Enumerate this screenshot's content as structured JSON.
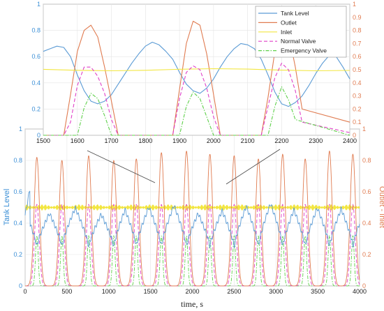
{
  "chart_data": [
    {
      "id": "full",
      "type": "line",
      "xlabel": "time, s",
      "ylabel_left": "Tank Level",
      "ylabel_right": "Outlet - Inlet",
      "xlim": [
        0,
        4000
      ],
      "ylim_left": [
        0,
        1
      ],
      "ylim_right": [
        0,
        1
      ],
      "xticks": [
        "0",
        "500",
        "1000",
        "1500",
        "2000",
        "2500",
        "3000",
        "3500",
        "4000"
      ],
      "yticks_left": [
        "0",
        "0.2",
        "0.4",
        "0.6",
        "0.8",
        "1"
      ],
      "yticks_right": [
        "0",
        "0.2",
        "0.4",
        "0.6",
        "0.8",
        "1"
      ],
      "grid": true,
      "cycle_peaks_x": [
        140,
        440,
        760,
        1060,
        1330,
        1630,
        1930,
        2210,
        2500,
        2790,
        3080,
        3350,
        3640,
        3920
      ],
      "tank_level_peaks": [
        0.65,
        0.62,
        0.68,
        0.61,
        0.66,
        0.69,
        0.71,
        0.62,
        0.65,
        0.7,
        0.73,
        0.66,
        0.68,
        0.67
      ],
      "tank_level_min": 0.25,
      "outlet_peaks": [
        0.82,
        0.8,
        0.83,
        0.8,
        0.81,
        0.85,
        0.86,
        0.84,
        0.83,
        0.81,
        0.84,
        0.81,
        0.86,
        0.84
      ],
      "inlet_level": 0.5,
      "normal_valve_peak": 0.52,
      "emergency_valve_peak": 0.32
    },
    {
      "id": "zoom",
      "type": "line",
      "xlim": [
        1500,
        2400
      ],
      "ylim_left": [
        0,
        1
      ],
      "ylim_right": [
        0,
        1
      ],
      "xticks": [
        "1500",
        "1600",
        "1700",
        "1800",
        "1900",
        "2000",
        "2100",
        "2200",
        "2300",
        "2400"
      ],
      "yticks_left": [
        "0",
        "0.2",
        "0.4",
        "0.6",
        "0.8",
        "1"
      ],
      "yticks_right": [
        "0",
        "0.1",
        "0.2",
        "0.3",
        "0.4",
        "0.5",
        "0.6",
        "0.7",
        "0.8",
        "0.9",
        "1"
      ],
      "grid": true,
      "legend_position": "top-right",
      "series": [
        {
          "name": "Tank Level",
          "color": "#5b9bd5",
          "dash": "solid",
          "x": [
            1500,
            1520,
            1540,
            1560,
            1580,
            1600,
            1620,
            1640,
            1660,
            1680,
            1700,
            1720,
            1740,
            1760,
            1780,
            1800,
            1820,
            1840,
            1860,
            1880,
            1900,
            1920,
            1940,
            1960,
            1980,
            2000,
            2020,
            2040,
            2060,
            2080,
            2100,
            2120,
            2140,
            2160,
            2180,
            2200,
            2220,
            2240,
            2260,
            2280,
            2300,
            2320,
            2340,
            2360,
            2380,
            2400
          ],
          "y": [
            0.64,
            0.66,
            0.68,
            0.67,
            0.6,
            0.46,
            0.34,
            0.26,
            0.24,
            0.26,
            0.31,
            0.39,
            0.47,
            0.55,
            0.62,
            0.68,
            0.71,
            0.69,
            0.64,
            0.58,
            0.48,
            0.39,
            0.34,
            0.32,
            0.36,
            0.43,
            0.52,
            0.6,
            0.66,
            0.7,
            0.69,
            0.66,
            0.58,
            0.46,
            0.33,
            0.24,
            0.22,
            0.25,
            0.3,
            0.38,
            0.47,
            0.55,
            0.61,
            0.6,
            0.52,
            0.43
          ]
        },
        {
          "name": "Outlet",
          "color": "#e07b50",
          "dash": "solid",
          "x": [
            1500,
            1540,
            1560,
            1580,
            1600,
            1620,
            1640,
            1660,
            1680,
            1700,
            1720,
            1880,
            1900,
            1920,
            1940,
            1960,
            1980,
            2000,
            2020,
            2140,
            2160,
            2180,
            2200,
            2220,
            2240,
            2260,
            2400
          ],
          "y": [
            0,
            0,
            0,
            0.31,
            0.64,
            0.8,
            0.84,
            0.75,
            0.52,
            0.26,
            0,
            0,
            0.35,
            0.7,
            0.87,
            0.84,
            0.62,
            0.31,
            0,
            0,
            0.29,
            0.64,
            0.82,
            0.78,
            0.52,
            0.2,
            0.1
          ]
        },
        {
          "name": "Inlet",
          "color": "#f2e640",
          "dash": "solid",
          "x": [
            1500,
            1600,
            1700,
            1800,
            1900,
            2000,
            2100,
            2200,
            2300,
            2400
          ],
          "y": [
            0.5,
            0.5,
            0.5,
            0.5,
            0.5,
            0.5,
            0.5,
            0.5,
            0.5,
            0.5
          ]
        },
        {
          "name": "Normal Valve",
          "color": "#e040c8",
          "dash": "dashed",
          "x": [
            1500,
            1560,
            1580,
            1600,
            1620,
            1640,
            1660,
            1680,
            1700,
            1720,
            1880,
            1900,
            1920,
            1940,
            1960,
            1980,
            2000,
            2020,
            2140,
            2160,
            2180,
            2200,
            2220,
            2240,
            2260,
            2400
          ],
          "y": [
            0,
            0,
            0.1,
            0.38,
            0.52,
            0.52,
            0.45,
            0.32,
            0.12,
            0,
            0,
            0.28,
            0.48,
            0.53,
            0.5,
            0.36,
            0.14,
            0,
            0,
            0.22,
            0.44,
            0.55,
            0.5,
            0.34,
            0.1,
            0.02
          ]
        },
        {
          "name": "Emergency Valve",
          "color": "#5ed04a",
          "dash": "dashdot",
          "x": [
            1500,
            1600,
            1620,
            1640,
            1660,
            1680,
            1700,
            1900,
            1920,
            1940,
            1960,
            1980,
            2000,
            2160,
            2180,
            2200,
            2220,
            2240,
            2400
          ],
          "y": [
            0,
            0,
            0.21,
            0.32,
            0.28,
            0.15,
            0,
            0,
            0.22,
            0.33,
            0.28,
            0.14,
            0,
            0,
            0.22,
            0.37,
            0.27,
            0.12,
            0
          ]
        }
      ]
    }
  ]
}
